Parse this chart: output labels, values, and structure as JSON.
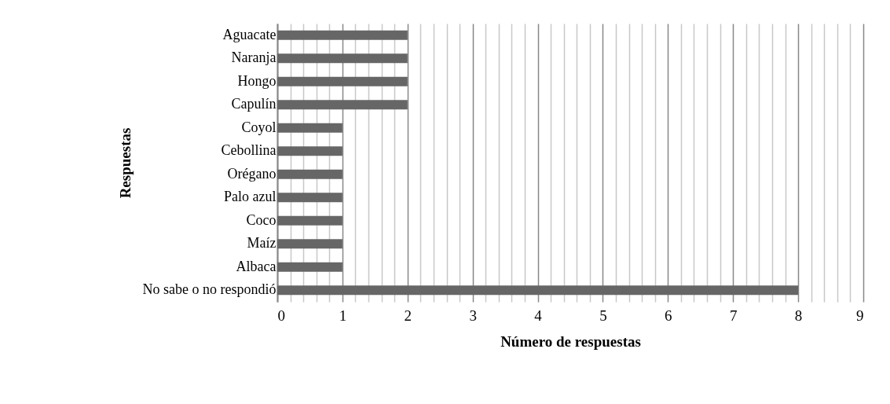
{
  "chart_data": {
    "type": "bar",
    "orientation": "horizontal",
    "xlabel": "Número de respuestas",
    "ylabel": "Respuestas",
    "categories": [
      "Aguacate",
      "Naranja",
      "Hongo",
      "Capulín",
      "Coyol",
      "Cebollina",
      "Orégano",
      "Palo azul",
      "Coco",
      "Maíz",
      "Albaca",
      "No sabe o no respondió"
    ],
    "values": [
      2,
      2,
      2,
      2,
      1,
      1,
      1,
      1,
      1,
      1,
      1,
      8
    ],
    "color": "#666666",
    "xlim": [
      0,
      9
    ],
    "xticks": [
      0,
      {
        "value": 0.2,
        "label": null
      },
      {
        "value": 0.4,
        "label": null
      },
      {
        "value": 0.6,
        "label": null
      },
      {
        "value": 0.8,
        "label": null
      },
      1,
      {
        "value": 1.2,
        "label": null
      },
      {
        "value": 1.4,
        "label": null
      },
      {
        "value": 1.6,
        "label": null
      },
      {
        "value": 1.8,
        "label": null
      },
      2,
      {
        "value": 2.2,
        "label": null
      },
      {
        "value": 2.4,
        "label": null
      },
      {
        "value": 2.6,
        "label": null
      },
      {
        "value": 2.8,
        "label": null
      },
      3,
      {
        "value": 3.2,
        "label": null
      },
      {
        "value": 3.4,
        "label": null
      },
      {
        "value": 3.6,
        "label": null
      },
      {
        "value": 3.8,
        "label": null
      },
      4,
      {
        "value": 4.2,
        "label": null
      },
      {
        "value": 4.4,
        "label": null
      },
      {
        "value": 4.6,
        "label": null
      },
      {
        "value": 4.8,
        "label": null
      },
      5,
      {
        "value": 5.2,
        "label": null
      },
      {
        "value": 5.4,
        "label": null
      },
      {
        "value": 5.6,
        "label": null
      },
      {
        "value": 5.8,
        "label": null
      },
      6,
      {
        "value": 6.2,
        "label": null
      },
      {
        "value": 6.4,
        "label": null
      },
      {
        "value": 6.6,
        "label": null
      },
      {
        "value": 6.8,
        "label": null
      },
      7,
      {
        "value": 7.2,
        "label": null
      },
      {
        "value": 7.4,
        "label": null
      },
      {
        "value": 7.6,
        "label": null
      },
      {
        "value": 7.8,
        "label": null
      },
      8,
      {
        "value": 8.2,
        "label": null
      },
      {
        "value": 8.4,
        "label": null
      },
      {
        "value": 8.6,
        "label": null
      },
      {
        "value": 8.8,
        "label": null
      },
      9
    ],
    "grid": "x"
  }
}
